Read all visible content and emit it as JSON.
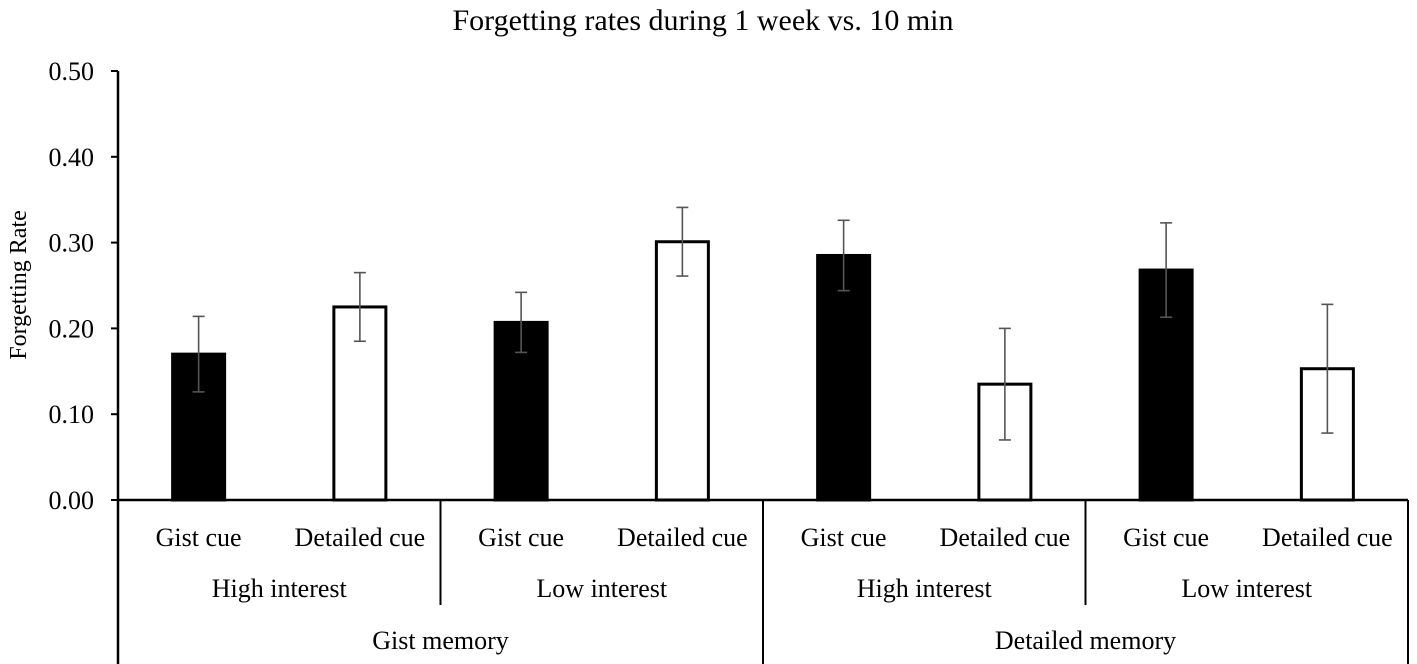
{
  "chart_data": {
    "type": "bar",
    "title": "Forgetting rates during 1 week vs. 10 min",
    "ylabel": "Forgetting Rate",
    "xlabel": "",
    "ylim": [
      0,
      0.5
    ],
    "yticks": [
      "0.00",
      "0.10",
      "0.20",
      "0.30",
      "0.40",
      "0.50"
    ],
    "grid": false,
    "colors": {
      "gist_cue": "#000000",
      "detailed_cue": "#ffffff",
      "error_bar": "#555555"
    },
    "groups_level2": [
      "Gist memory",
      "Detailed memory"
    ],
    "groups_level1": [
      "High interest",
      "Low interest",
      "High interest",
      "Low interest"
    ],
    "categories": [
      "Gist cue",
      "Detailed cue",
      "Gist cue",
      "Detailed cue",
      "Gist cue",
      "Detailed cue",
      "Gist cue",
      "Detailed cue"
    ],
    "values": [
      0.17,
      0.225,
      0.207,
      0.301,
      0.285,
      0.135,
      0.268,
      0.153
    ],
    "errors": [
      0.044,
      0.04,
      0.035,
      0.04,
      0.041,
      0.065,
      0.055,
      0.075
    ]
  }
}
